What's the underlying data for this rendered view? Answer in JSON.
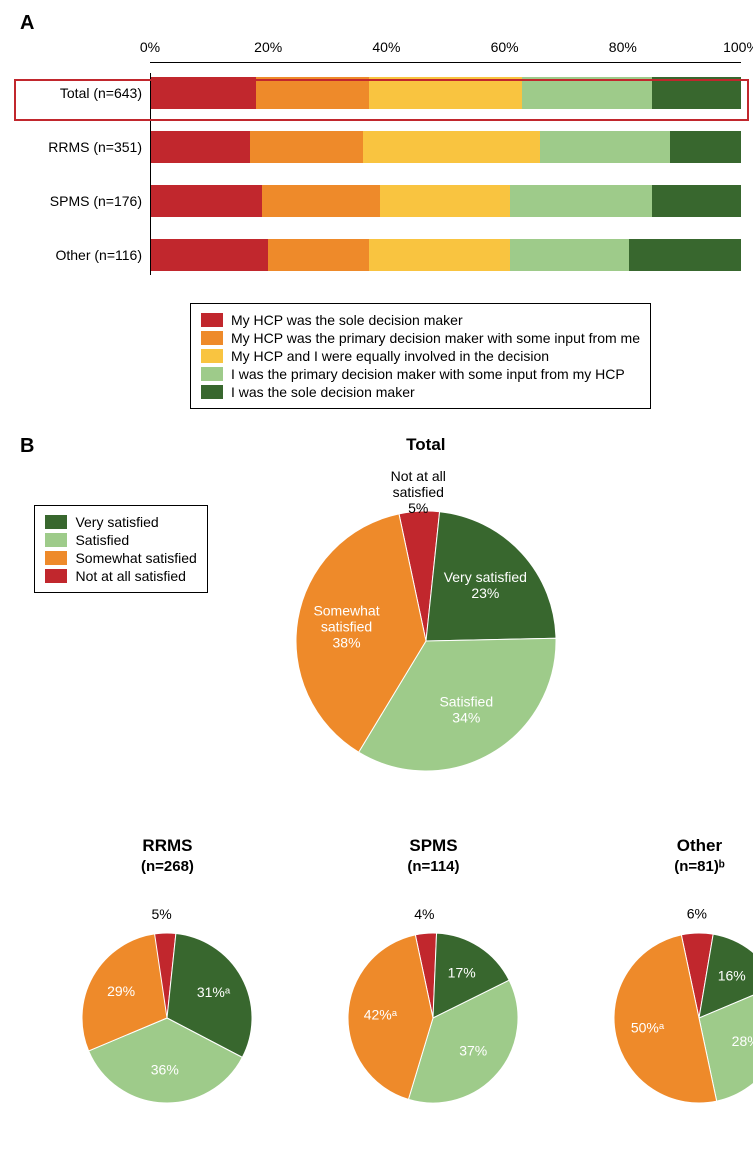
{
  "colors": {
    "sole_hcp": "#c1272d",
    "primary_hcp": "#ee8a2a",
    "equal": "#f9c440",
    "primary_me": "#9ecb8a",
    "sole_me": "#38672e",
    "very_sat": "#38672e",
    "sat": "#9ecb8a",
    "some_sat": "#ee8a2a",
    "not_sat": "#c1272d",
    "highlight": "#c1272d",
    "stroke": "#ffffff"
  },
  "panelA": {
    "label": "A",
    "xticks": [
      0,
      20,
      40,
      60,
      80,
      100
    ],
    "xtick_suffix": "%",
    "segment_order": [
      "sole_hcp",
      "primary_hcp",
      "equal",
      "primary_me",
      "sole_me"
    ],
    "rows": [
      {
        "label": "Total (n=643)",
        "highlight": true,
        "values": {
          "sole_hcp": 18,
          "primary_hcp": 19,
          "equal": 26,
          "primary_me": 22,
          "sole_me": 15
        }
      },
      {
        "label": "RRMS (n=351)",
        "highlight": false,
        "values": {
          "sole_hcp": 17,
          "primary_hcp": 19,
          "equal": 30,
          "primary_me": 22,
          "sole_me": 12
        }
      },
      {
        "label": "SPMS (n=176)",
        "highlight": false,
        "values": {
          "sole_hcp": 19,
          "primary_hcp": 20,
          "equal": 22,
          "primary_me": 24,
          "sole_me": 15
        }
      },
      {
        "label": "Other (n=116)",
        "highlight": false,
        "values": {
          "sole_hcp": 20,
          "primary_hcp": 17,
          "equal": 24,
          "primary_me": 20,
          "sole_me": 19
        }
      }
    ],
    "legend": [
      {
        "key": "sole_hcp",
        "text": "My HCP was the sole decision maker"
      },
      {
        "key": "primary_hcp",
        "text": "My HCP was the primary decision maker with some input from me"
      },
      {
        "key": "equal",
        "text": "My HCP and I were equally involved in the decision"
      },
      {
        "key": "primary_me",
        "text": "I was the primary decision maker with some input from my HCP"
      },
      {
        "key": "sole_me",
        "text": "I was the sole decision maker"
      }
    ]
  },
  "panelB": {
    "label": "B",
    "legend": [
      {
        "key": "very_sat",
        "text": "Very satisfied"
      },
      {
        "key": "sat",
        "text": "Satisfied"
      },
      {
        "key": "some_sat",
        "text": "Somewhat satisfied"
      },
      {
        "key": "not_sat",
        "text": "Not at all satisfied"
      }
    ],
    "slice_order": [
      "not_sat",
      "very_sat",
      "sat",
      "some_sat"
    ],
    "start_angle_deg": -12,
    "total": {
      "title": "Total",
      "radius": 130,
      "show_labels": true,
      "slices": {
        "very_sat": {
          "pct": 23,
          "label": "Very satisfied",
          "lbl_color": "#ffffff"
        },
        "sat": {
          "pct": 34,
          "label": "Satisfied",
          "lbl_color": "#ffffff"
        },
        "some_sat": {
          "pct": 38,
          "label": "Somewhat\nsatisfied",
          "lbl_color": "#ffffff"
        },
        "not_sat": {
          "pct": 5,
          "label": "Not at all\nsatisfied",
          "lbl_color": "#000000",
          "label_outside": true
        }
      }
    },
    "small": [
      {
        "title": "RRMS",
        "sub": "(n=268)",
        "radius": 85,
        "slices": {
          "very_sat": {
            "pct": 31,
            "suffix": "ᵃ"
          },
          "sat": {
            "pct": 36
          },
          "some_sat": {
            "pct": 29
          },
          "not_sat": {
            "pct": 5,
            "label_outside": true
          }
        }
      },
      {
        "title": "SPMS",
        "sub": "(n=114)",
        "radius": 85,
        "slices": {
          "very_sat": {
            "pct": 17
          },
          "sat": {
            "pct": 37
          },
          "some_sat": {
            "pct": 42,
            "suffix": "ᵃ"
          },
          "not_sat": {
            "pct": 4,
            "label_outside": true
          }
        }
      },
      {
        "title": "Other",
        "sub": "(n=81)ᵇ",
        "radius": 85,
        "slices": {
          "very_sat": {
            "pct": 16
          },
          "sat": {
            "pct": 28
          },
          "some_sat": {
            "pct": 50,
            "suffix": "ᵃ"
          },
          "not_sat": {
            "pct": 6,
            "label_outside": true
          }
        }
      }
    ]
  }
}
